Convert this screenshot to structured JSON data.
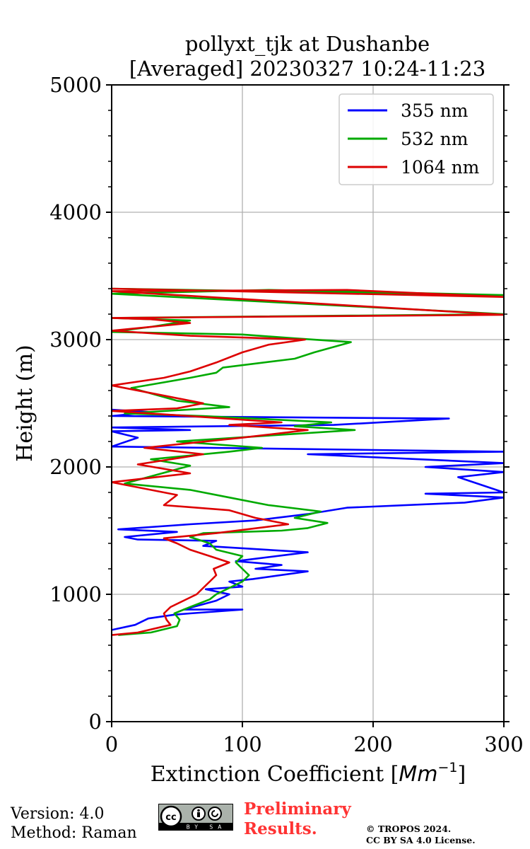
{
  "chart_data": {
    "type": "line",
    "title_line1": "pollyxt_tjk at Dushanbe",
    "title_line2": "[Averaged] 20230327 10:24-11:23",
    "xlabel_main": "Extinction Coefficient [",
    "xlabel_unit": "Mm",
    "xlabel_exp": "−1",
    "xlabel_close": "]",
    "ylabel": "Height (m)",
    "xlim": [
      0,
      300
    ],
    "ylim": [
      0,
      5000
    ],
    "xticks": [
      0,
      100,
      200,
      300
    ],
    "xtick_labels": [
      "0",
      "100",
      "200",
      "300"
    ],
    "yticks": [
      0,
      1000,
      2000,
      3000,
      4000,
      5000
    ],
    "ytick_labels": [
      "0",
      "1000",
      "2000",
      "3000",
      "4000",
      "5000"
    ],
    "grid": true,
    "legend_position": "top-right",
    "series": [
      {
        "name": "355 nm",
        "color": "#0000ff",
        "points": [
          [
            0,
            720
          ],
          [
            18,
            760
          ],
          [
            28,
            810
          ],
          [
            48,
            840
          ],
          [
            60,
            850
          ],
          [
            100,
            880
          ],
          [
            55,
            880
          ],
          [
            80,
            950
          ],
          [
            90,
            1000
          ],
          [
            72,
            1040
          ],
          [
            100,
            1060
          ],
          [
            90,
            1100
          ],
          [
            108,
            1120
          ],
          [
            150,
            1180
          ],
          [
            110,
            1200
          ],
          [
            130,
            1230
          ],
          [
            95,
            1260
          ],
          [
            150,
            1330
          ],
          [
            70,
            1380
          ],
          [
            80,
            1420
          ],
          [
            20,
            1430
          ],
          [
            10,
            1450
          ],
          [
            50,
            1490
          ],
          [
            5,
            1510
          ],
          [
            60,
            1550
          ],
          [
            110,
            1580
          ],
          [
            150,
            1630
          ],
          [
            180,
            1680
          ],
          [
            270,
            1720
          ],
          [
            300,
            1760
          ],
          [
            240,
            1790
          ],
          [
            300,
            1800
          ],
          [
            265,
            1920
          ],
          [
            300,
            1960
          ],
          [
            240,
            2000
          ],
          [
            300,
            2030
          ],
          [
            150,
            2100
          ],
          [
            300,
            2120
          ],
          [
            0,
            2160
          ],
          [
            20,
            2230
          ],
          [
            0,
            2280
          ],
          [
            60,
            2290
          ],
          [
            0,
            2310
          ],
          [
            170,
            2330
          ],
          [
            258,
            2380
          ],
          [
            0,
            2400
          ],
          [
            30,
            2430
          ],
          [
            0,
            2450
          ]
        ]
      },
      {
        "name": "532 nm",
        "color": "#00aa00",
        "points": [
          [
            5,
            680
          ],
          [
            30,
            700
          ],
          [
            50,
            750
          ],
          [
            52,
            800
          ],
          [
            48,
            850
          ],
          [
            60,
            900
          ],
          [
            75,
            960
          ],
          [
            80,
            1000
          ],
          [
            90,
            1050
          ],
          [
            100,
            1100
          ],
          [
            105,
            1150
          ],
          [
            100,
            1200
          ],
          [
            95,
            1250
          ],
          [
            100,
            1300
          ],
          [
            80,
            1350
          ],
          [
            75,
            1400
          ],
          [
            60,
            1450
          ],
          [
            70,
            1480
          ],
          [
            130,
            1500
          ],
          [
            150,
            1520
          ],
          [
            165,
            1560
          ],
          [
            140,
            1600
          ],
          [
            160,
            1650
          ],
          [
            120,
            1700
          ],
          [
            90,
            1760
          ],
          [
            60,
            1820
          ],
          [
            10,
            1870
          ],
          [
            60,
            2010
          ],
          [
            30,
            2060
          ],
          [
            90,
            2120
          ],
          [
            115,
            2150
          ],
          [
            50,
            2200
          ],
          [
            186,
            2290
          ],
          [
            140,
            2320
          ],
          [
            168,
            2350
          ],
          [
            70,
            2400
          ],
          [
            10,
            2420
          ],
          [
            90,
            2470
          ],
          [
            50,
            2520
          ],
          [
            15,
            2620
          ],
          [
            60,
            2700
          ],
          [
            80,
            2740
          ],
          [
            85,
            2780
          ],
          [
            140,
            2850
          ],
          [
            155,
            2900
          ],
          [
            183,
            2980
          ],
          [
            140,
            3010
          ],
          [
            100,
            3040
          ],
          [
            0,
            3060
          ],
          [
            30,
            3100
          ],
          [
            60,
            3150
          ],
          [
            0,
            3170
          ],
          [
            300,
            3200
          ],
          [
            0,
            3360
          ],
          [
            120,
            3390
          ],
          [
            300,
            3350
          ],
          [
            0,
            3400
          ]
        ]
      },
      {
        "name": "1064 nm",
        "color": "#dd0000",
        "points": [
          [
            0,
            680
          ],
          [
            20,
            700
          ],
          [
            45,
            760
          ],
          [
            42,
            800
          ],
          [
            40,
            850
          ],
          [
            45,
            900
          ],
          [
            55,
            950
          ],
          [
            65,
            1000
          ],
          [
            70,
            1050
          ],
          [
            75,
            1100
          ],
          [
            80,
            1150
          ],
          [
            78,
            1200
          ],
          [
            90,
            1250
          ],
          [
            75,
            1300
          ],
          [
            60,
            1350
          ],
          [
            50,
            1400
          ],
          [
            40,
            1440
          ],
          [
            80,
            1480
          ],
          [
            135,
            1550
          ],
          [
            110,
            1600
          ],
          [
            90,
            1660
          ],
          [
            40,
            1700
          ],
          [
            50,
            1780
          ],
          [
            0,
            1880
          ],
          [
            60,
            1950
          ],
          [
            20,
            2020
          ],
          [
            70,
            2100
          ],
          [
            25,
            2150
          ],
          [
            100,
            2230
          ],
          [
            150,
            2290
          ],
          [
            90,
            2330
          ],
          [
            130,
            2350
          ],
          [
            30,
            2420
          ],
          [
            0,
            2440
          ],
          [
            50,
            2460
          ],
          [
            70,
            2500
          ],
          [
            40,
            2560
          ],
          [
            0,
            2640
          ],
          [
            40,
            2700
          ],
          [
            60,
            2750
          ],
          [
            80,
            2820
          ],
          [
            100,
            2900
          ],
          [
            120,
            2960
          ],
          [
            148,
            3000
          ],
          [
            60,
            3030
          ],
          [
            0,
            3070
          ],
          [
            60,
            3130
          ],
          [
            30,
            3160
          ],
          [
            0,
            3170
          ],
          [
            300,
            3195
          ],
          [
            0,
            3380
          ],
          [
            180,
            3390
          ],
          [
            300,
            3335
          ],
          [
            0,
            3400
          ]
        ]
      }
    ]
  },
  "footer": {
    "version": "Version: 4.0",
    "method": "Method: Raman",
    "prelim_line1": "Preliminary",
    "prelim_line2": "Results.",
    "copyright_line1": "© TROPOS 2024.",
    "copyright_line2": "CC BY SA 4.0 License.",
    "cc_badge_text": "BY SA",
    "cc_logo_text": "cc"
  }
}
